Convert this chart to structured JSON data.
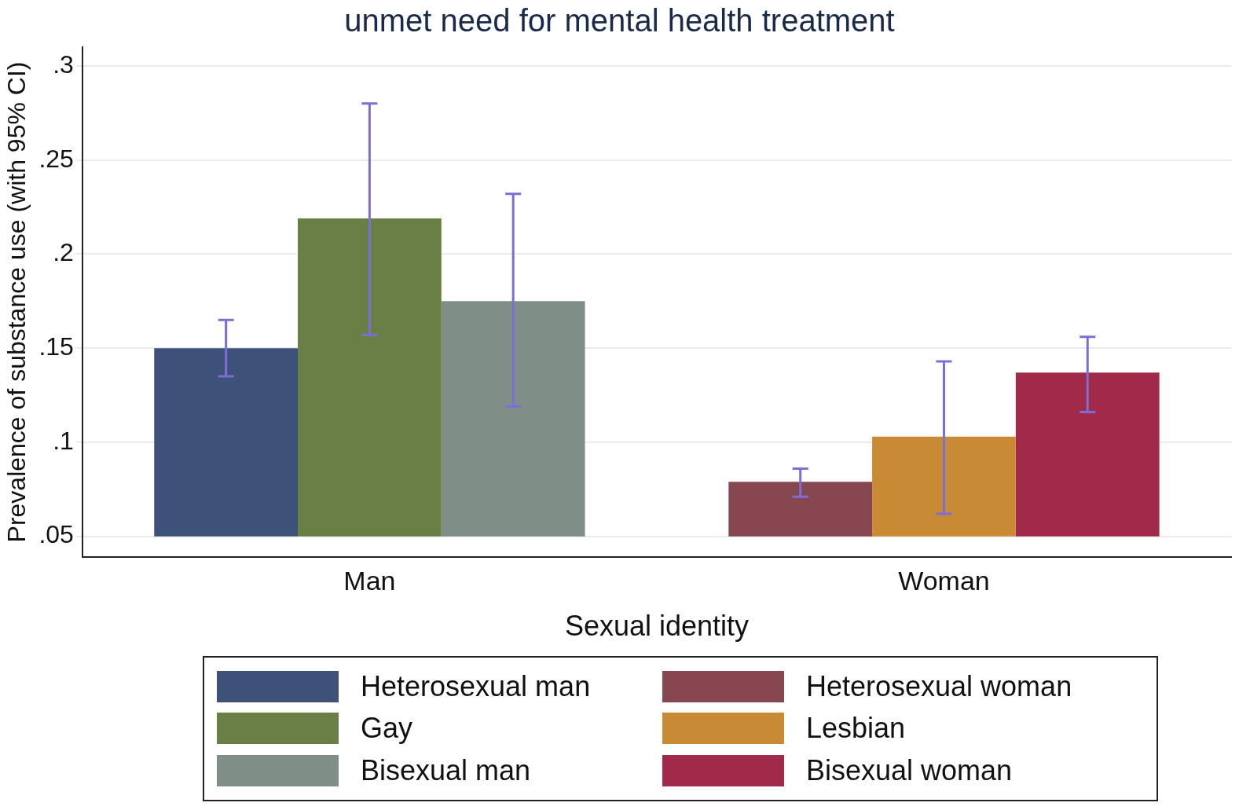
{
  "chart_data": {
    "type": "bar",
    "title": "unmet need for mental health treatment",
    "xlabel": "Sexual identity",
    "ylabel": "Prevalence of substance use (with 95% CI)",
    "categories": [
      "Man",
      "Woman"
    ],
    "series": [
      {
        "name": "Heterosexual man",
        "color": "#3e5178",
        "base": [
          0.05,
          null
        ],
        "values": [
          0.1,
          null
        ],
        "errors": [
          [
            0.135,
            0.165
          ],
          null
        ]
      },
      {
        "name": "Gay",
        "color": "#6a7f45",
        "base": [
          0.05,
          null
        ],
        "values": [
          0.169,
          null
        ],
        "errors": [
          [
            0.157,
            0.28
          ],
          null
        ]
      },
      {
        "name": "Bisexual man",
        "color": "#7f8f88",
        "base": [
          0.05,
          null
        ],
        "values": [
          0.125,
          null
        ],
        "errors": [
          [
            0.119,
            0.232
          ],
          null
        ]
      },
      {
        "name": "Heterosexual woman",
        "color": "#864750",
        "base": [
          null,
          0.05
        ],
        "values": [
          null,
          0.029
        ],
        "errors": [
          null,
          [
            0.071,
            0.086
          ]
        ]
      },
      {
        "name": "Lesbian",
        "color": "#c98a35",
        "base": [
          null,
          0.05
        ],
        "values": [
          null,
          0.053
        ],
        "errors": [
          null,
          [
            0.062,
            0.143
          ]
        ]
      },
      {
        "name": "Bisexual woman",
        "color": "#a1294a",
        "base": [
          null,
          0.05
        ],
        "values": [
          null,
          0.087
        ],
        "errors": [
          null,
          [
            0.116,
            0.156
          ]
        ]
      }
    ],
    "ylim": [
      0.039,
      0.31
    ],
    "yticks": [
      {
        "value": 0.05,
        "label": ".05"
      },
      {
        "value": 0.1,
        "label": ".1"
      },
      {
        "value": 0.15,
        "label": ".15"
      },
      {
        "value": 0.2,
        "label": ".2"
      },
      {
        "value": 0.25,
        "label": ".25"
      },
      {
        "value": 0.3,
        "label": ".3"
      }
    ],
    "grid": "y",
    "legend": "bottom"
  }
}
